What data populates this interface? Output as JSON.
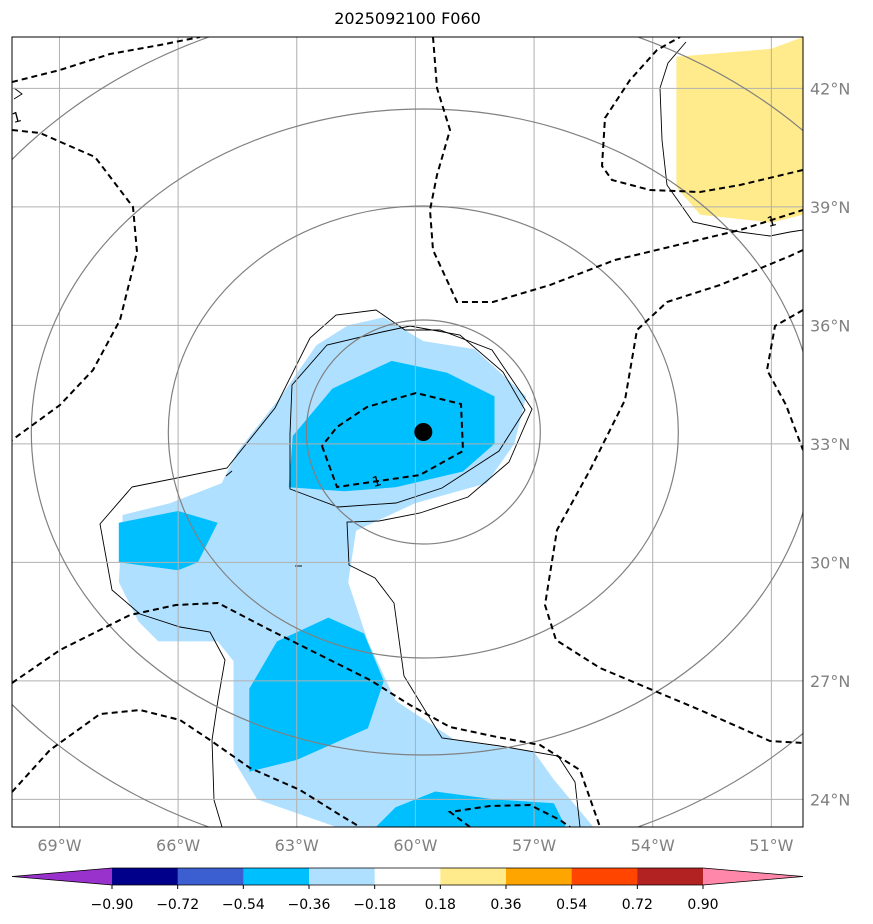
{
  "title": "2025092100 F060",
  "chart_data": {
    "type": "contour-map",
    "title": "2025092100 F060",
    "longitude_ticks": [
      {
        "value": -69,
        "label": "69°W"
      },
      {
        "value": -66,
        "label": "66°W"
      },
      {
        "value": -63,
        "label": "63°W"
      },
      {
        "value": -60,
        "label": "60°W"
      },
      {
        "value": -57,
        "label": "57°W"
      },
      {
        "value": -54,
        "label": "54°W"
      },
      {
        "value": -51,
        "label": "51°W"
      }
    ],
    "latitude_ticks": [
      {
        "value": 42,
        "label": "42°N"
      },
      {
        "value": 39,
        "label": "39°N"
      },
      {
        "value": 36,
        "label": "36°N"
      },
      {
        "value": 33,
        "label": "33°N"
      },
      {
        "value": 30,
        "label": "30°N"
      },
      {
        "value": 27,
        "label": "27°N"
      },
      {
        "value": 24,
        "label": "24°N"
      }
    ],
    "lon_range": [
      -70.2,
      -50.2
    ],
    "lat_range": [
      23.3,
      43.3
    ],
    "grid": true,
    "center_marker": {
      "lon": -59.8,
      "lat": 33.3
    },
    "dashed_contour_label": "1",
    "colorbar": {
      "orientation": "horizontal",
      "extend": "both",
      "colors": [
        "#9932cc",
        "#00008b",
        "#3b5fd0",
        "#00bfff",
        "#b0e0ff",
        "#ffffff",
        "#ffeb8c",
        "#ffa500",
        "#ff4500",
        "#b22222",
        "#ff88aa"
      ],
      "tick_values": [
        -0.9,
        -0.72,
        -0.54,
        -0.36,
        -0.18,
        0.18,
        0.36,
        0.54,
        0.72,
        0.9
      ],
      "tick_labels": [
        "−0.90",
        "−0.72",
        "−0.54",
        "−0.36",
        "−0.18",
        "0.18",
        "0.36",
        "0.54",
        "0.72",
        "0.90"
      ]
    },
    "shaded_regions": [
      {
        "level": "-0.36 to -0.18",
        "color": "#b0e0ff",
        "points": [
          [
            -64.9,
            32.0
          ],
          [
            -66.2,
            31.5
          ],
          [
            -67.4,
            31.2
          ],
          [
            -67.5,
            29.5
          ],
          [
            -67.0,
            28.5
          ],
          [
            -66.5,
            28.0
          ],
          [
            -65.0,
            28.0
          ],
          [
            -64.6,
            27.5
          ],
          [
            -64.6,
            25.0
          ],
          [
            -64.0,
            24.0
          ],
          [
            -62.0,
            23.3
          ],
          [
            -55.5,
            23.3
          ],
          [
            -56.5,
            24.5
          ],
          [
            -57.0,
            25.2
          ],
          [
            -59.0,
            25.5
          ],
          [
            -60.5,
            26.5
          ],
          [
            -61.2,
            28.0
          ],
          [
            -61.7,
            29.5
          ],
          [
            -61.5,
            30.8
          ],
          [
            -60.0,
            31.5
          ],
          [
            -58.2,
            32.0
          ],
          [
            -57.5,
            33.0
          ],
          [
            -57.2,
            34.2
          ],
          [
            -58.5,
            35.4
          ],
          [
            -59.8,
            35.6
          ],
          [
            -60.8,
            36.2
          ],
          [
            -61.7,
            36.0
          ],
          [
            -62.5,
            35.5
          ],
          [
            -63.4,
            34.2
          ],
          [
            -64.5,
            32.8
          ]
        ]
      },
      {
        "level": "-0.54 to -0.36",
        "color": "#00bfff",
        "points": [
          [
            -62.1,
            34.4
          ],
          [
            -60.6,
            35.1
          ],
          [
            -59.2,
            34.8
          ],
          [
            -58.0,
            34.2
          ],
          [
            -58.0,
            33.0
          ],
          [
            -58.8,
            32.3
          ],
          [
            -60.5,
            31.9
          ],
          [
            -61.8,
            31.8
          ],
          [
            -63.2,
            31.9
          ],
          [
            -63.1,
            33.2
          ]
        ]
      },
      {
        "level": "-0.54 to -0.36",
        "color": "#00bfff",
        "points": [
          [
            -67.5,
            31.0
          ],
          [
            -66.0,
            31.3
          ],
          [
            -65.0,
            31.0
          ],
          [
            -65.5,
            30.0
          ],
          [
            -66.0,
            29.8
          ],
          [
            -67.5,
            30.0
          ]
        ]
      },
      {
        "level": "-0.54 to -0.36",
        "color": "#00bfff",
        "points": [
          [
            -64.2,
            26.8
          ],
          [
            -64.2,
            24.7
          ],
          [
            -63.0,
            25.0
          ],
          [
            -61.2,
            25.8
          ],
          [
            -60.8,
            27.0
          ],
          [
            -61.3,
            28.2
          ],
          [
            -62.2,
            28.6
          ],
          [
            -63.5,
            28.0
          ]
        ]
      },
      {
        "level": "-0.54 to -0.36",
        "color": "#00bfff",
        "points": [
          [
            -61.0,
            23.3
          ],
          [
            -60.5,
            23.8
          ],
          [
            -59.5,
            24.2
          ],
          [
            -58.0,
            24.0
          ],
          [
            -56.5,
            23.9
          ],
          [
            -56.2,
            23.3
          ]
        ]
      },
      {
        "level": "0.18 to 0.36",
        "color": "#ffeb8c",
        "points": [
          [
            -53.4,
            42.8
          ],
          [
            -51.0,
            43.0
          ],
          [
            -50.2,
            43.3
          ],
          [
            -50.2,
            38.8
          ],
          [
            -51.0,
            38.6
          ],
          [
            -52.8,
            38.8
          ],
          [
            -53.4,
            39.5
          ]
        ]
      }
    ]
  }
}
